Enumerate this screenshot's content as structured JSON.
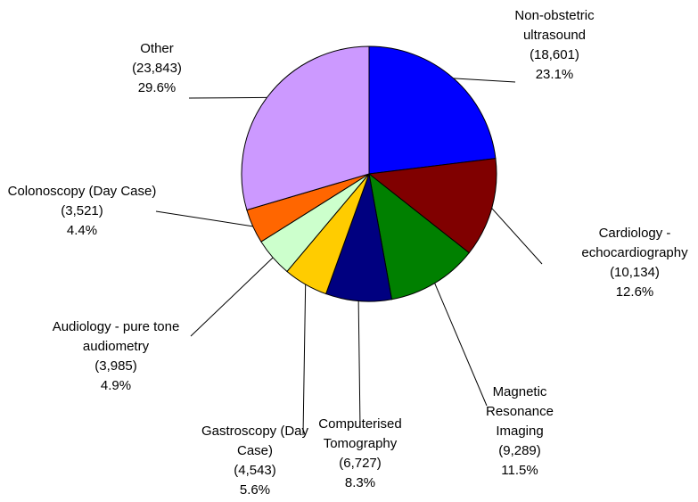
{
  "chart_data": {
    "type": "pie",
    "categories": [
      "Non-obstetric ultrasound",
      "Cardiology - echocardiography",
      "Magnetic Resonance Imaging",
      "Computerised Tomography",
      "Gastroscopy (Day Case)",
      "Audiology - pure tone audiometry",
      "Colonoscopy (Day Case)",
      "Other"
    ],
    "values": [
      18601,
      10134,
      9289,
      6727,
      4543,
      3985,
      3521,
      23843
    ],
    "value_labels": [
      "(18,601)",
      "(10,134)",
      "(9,289)",
      "(6,727)",
      "(4,543)",
      "(3,985)",
      "(3,521)",
      "(23,843)"
    ],
    "percent_labels": [
      "23.1%",
      "12.6%",
      "11.5%",
      "8.3%",
      "5.6%",
      "4.9%",
      "4.4%",
      "29.6%"
    ],
    "colors": [
      "#0000ff",
      "#800000",
      "#008000",
      "#000080",
      "#ffcc00",
      "#ccffcc",
      "#ff6600",
      "#cc99ff"
    ]
  }
}
